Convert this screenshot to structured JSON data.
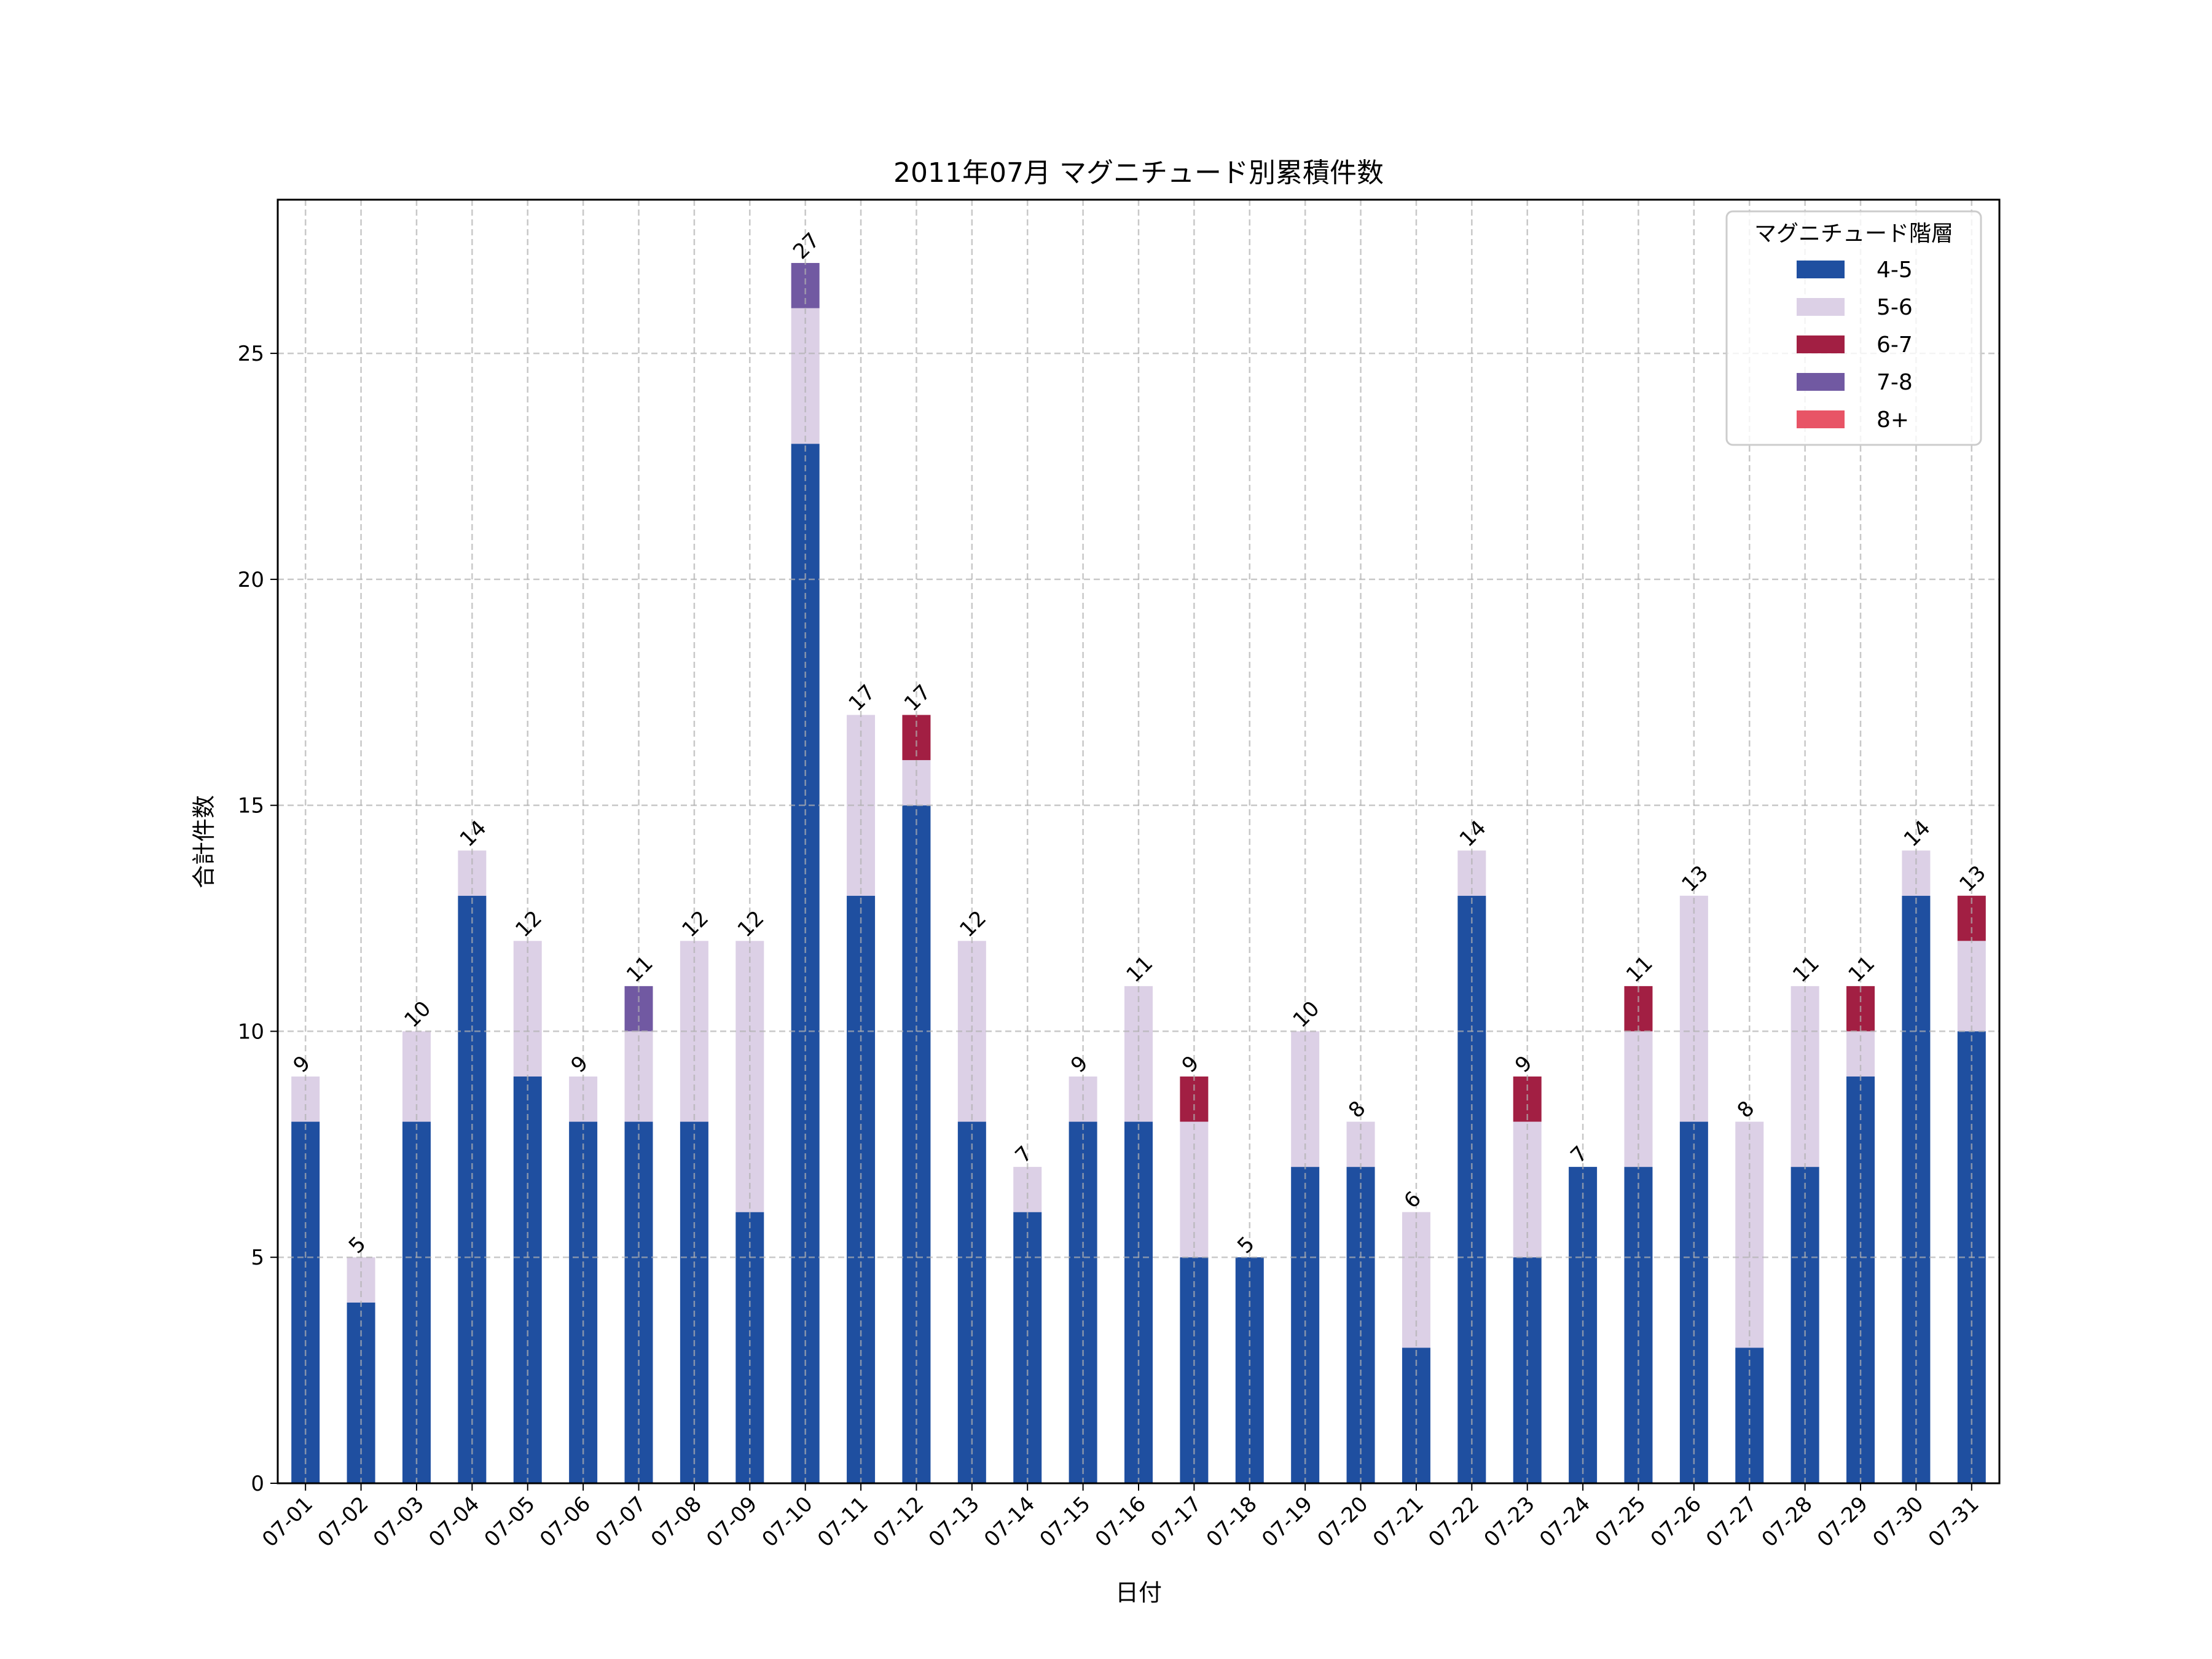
{
  "chart_data": {
    "type": "bar",
    "stacked": true,
    "title": "2011年07月 マグニチュード別累積件数",
    "xlabel": "日付",
    "ylabel": "合計件数",
    "ylim": [
      0,
      28.4
    ],
    "yticks": [
      0,
      5,
      10,
      15,
      20,
      25
    ],
    "grid": true,
    "legend": {
      "title": "マグニチュード階層",
      "placement": "top-right"
    },
    "categories": [
      "07-01",
      "07-02",
      "07-03",
      "07-04",
      "07-05",
      "07-06",
      "07-07",
      "07-08",
      "07-09",
      "07-10",
      "07-11",
      "07-12",
      "07-13",
      "07-14",
      "07-15",
      "07-16",
      "07-17",
      "07-18",
      "07-19",
      "07-20",
      "07-21",
      "07-22",
      "07-23",
      "07-24",
      "07-25",
      "07-26",
      "07-27",
      "07-28",
      "07-29",
      "07-30",
      "07-31"
    ],
    "series": [
      {
        "name": "4-5",
        "color": "#1f4fa0",
        "values": [
          8,
          4,
          8,
          13,
          9,
          8,
          8,
          8,
          6,
          23,
          13,
          15,
          8,
          6,
          8,
          8,
          5,
          5,
          7,
          7,
          3,
          13,
          5,
          7,
          7,
          8,
          3,
          7,
          9,
          13,
          10
        ]
      },
      {
        "name": "5-6",
        "color": "#dcd0e6",
        "values": [
          1,
          1,
          2,
          1,
          3,
          1,
          2,
          4,
          6,
          3,
          4,
          1,
          4,
          1,
          1,
          3,
          3,
          0,
          3,
          1,
          3,
          1,
          3,
          0,
          3,
          5,
          5,
          4,
          1,
          1,
          2
        ]
      },
      {
        "name": "6-7",
        "color": "#a21f43",
        "values": [
          0,
          0,
          0,
          0,
          0,
          0,
          0,
          0,
          0,
          0,
          0,
          1,
          0,
          0,
          0,
          0,
          1,
          0,
          0,
          0,
          0,
          0,
          1,
          0,
          1,
          0,
          0,
          0,
          1,
          0,
          1
        ]
      },
      {
        "name": "7-8",
        "color": "#7159a2",
        "values": [
          0,
          0,
          0,
          0,
          0,
          0,
          1,
          0,
          0,
          1,
          0,
          0,
          0,
          0,
          0,
          0,
          0,
          0,
          0,
          0,
          0,
          0,
          0,
          0,
          0,
          0,
          0,
          0,
          0,
          0,
          0
        ]
      },
      {
        "name": "8+",
        "color": "#e85466",
        "values": [
          0,
          0,
          0,
          0,
          0,
          0,
          0,
          0,
          0,
          0,
          0,
          0,
          0,
          0,
          0,
          0,
          0,
          0,
          0,
          0,
          0,
          0,
          0,
          0,
          0,
          0,
          0,
          0,
          0,
          0,
          0
        ]
      }
    ],
    "totals": [
      9,
      5,
      10,
      14,
      12,
      9,
      11,
      12,
      12,
      27,
      17,
      17,
      12,
      7,
      9,
      11,
      9,
      5,
      10,
      8,
      6,
      14,
      9,
      7,
      11,
      13,
      8,
      11,
      11,
      14,
      13
    ]
  }
}
